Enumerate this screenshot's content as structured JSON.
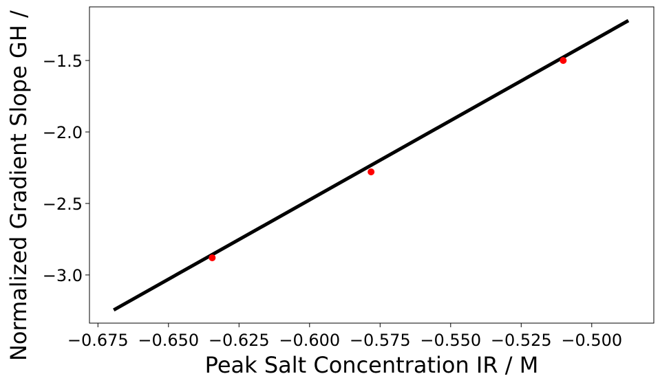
{
  "chart_data": {
    "type": "line",
    "xlabel": "Peak Salt Concentration IR / M",
    "ylabel": "Normalized Gradient Slope GH /",
    "xlim": [
      -0.678,
      -0.478
    ],
    "ylim": [
      -3.337,
      -1.125
    ],
    "xticks": [
      {
        "value": -0.675,
        "label": "−0.675"
      },
      {
        "value": -0.65,
        "label": "−0.650"
      },
      {
        "value": -0.625,
        "label": "−0.625"
      },
      {
        "value": -0.6,
        "label": "−0.600"
      },
      {
        "value": -0.575,
        "label": "−0.575"
      },
      {
        "value": -0.55,
        "label": "−0.550"
      },
      {
        "value": -0.525,
        "label": "−0.525"
      },
      {
        "value": -0.5,
        "label": "−0.500"
      }
    ],
    "yticks": [
      {
        "value": -1.5,
        "label": "−1.5"
      },
      {
        "value": -2.0,
        "label": "−2.0"
      },
      {
        "value": -2.5,
        "label": "−2.5"
      },
      {
        "value": -3.0,
        "label": "−3.0"
      }
    ],
    "series": [
      {
        "kind": "line",
        "color": "#000000",
        "x": [
          -0.6694,
          -0.487
        ],
        "values": [
          -3.245,
          -1.221
        ]
      },
      {
        "kind": "marker",
        "color": "#ff0000",
        "x": [
          -0.6345,
          -0.5782,
          -0.5101
        ],
        "values": [
          -2.88,
          -2.279,
          -1.5
        ]
      }
    ]
  }
}
